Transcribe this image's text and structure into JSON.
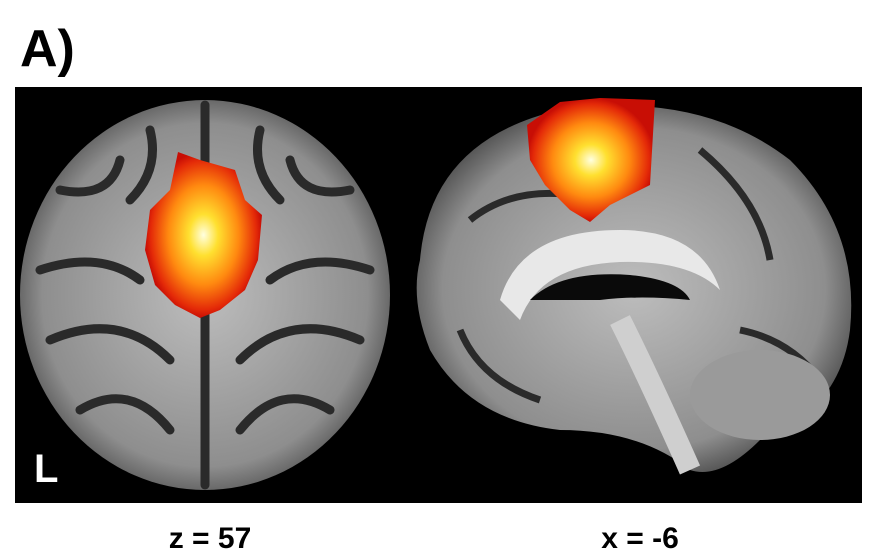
{
  "panel_label": "A)",
  "images": [
    {
      "caption": "z = 57",
      "orientation_label": "L"
    },
    {
      "caption": "x = -6"
    }
  ]
}
